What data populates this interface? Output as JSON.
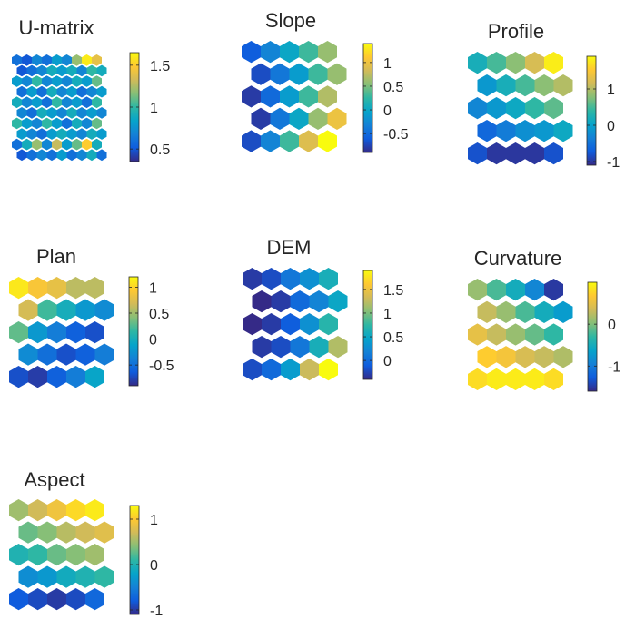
{
  "colormap": [
    "#352a87",
    "#0f5cdd",
    "#1481d6",
    "#06a4ca",
    "#2eb7a4",
    "#87bf77",
    "#d1bb59",
    "#fec832",
    "#f9fb0e"
  ],
  "chart_data": [
    {
      "type": "heatmap",
      "title": "U-matrix",
      "grid": "hexagonal",
      "rows": 10,
      "cols": 9,
      "clim": [
        0.35,
        1.65
      ],
      "colorbar_ticks": [
        {
          "value": 0.5,
          "label": "0.5"
        },
        {
          "value": 1,
          "label": "1"
        },
        {
          "value": 1.5,
          "label": "1.5"
        }
      ],
      "values": [
        [
          0.6,
          0.5,
          0.7,
          0.6,
          0.8,
          0.7,
          1.2,
          1.6,
          1.4
        ],
        [
          0.5,
          0.6,
          0.7,
          0.9,
          0.8,
          0.9,
          0.7,
          1.0,
          0.9
        ],
        [
          0.8,
          0.7,
          1.0,
          0.7,
          0.8,
          0.7,
          0.9,
          0.8,
          1.1
        ],
        [
          0.6,
          0.8,
          0.6,
          0.9,
          0.7,
          0.8,
          0.6,
          0.7,
          0.8
        ],
        [
          0.9,
          0.7,
          0.8,
          0.6,
          1.0,
          0.7,
          0.8,
          0.6,
          1.0
        ],
        [
          0.7,
          0.6,
          0.9,
          0.8,
          0.7,
          0.9,
          0.7,
          0.8,
          0.7
        ],
        [
          1.0,
          0.8,
          0.7,
          1.0,
          0.8,
          0.6,
          0.9,
          0.7,
          1.1
        ],
        [
          0.8,
          0.7,
          0.6,
          0.8,
          0.9,
          0.8,
          0.7,
          0.9,
          0.8
        ],
        [
          0.6,
          0.9,
          1.2,
          0.7,
          1.3,
          0.8,
          1.1,
          1.5,
          0.9
        ],
        [
          0.5,
          0.6,
          0.7,
          0.6,
          0.8,
          0.6,
          0.7,
          0.9,
          0.6
        ]
      ]
    },
    {
      "type": "heatmap",
      "title": "Slope",
      "grid": "hexagonal",
      "rows": 5,
      "cols": 5,
      "clim": [
        -0.9,
        1.4
      ],
      "colorbar_ticks": [
        {
          "value": -0.5,
          "label": "-0.5"
        },
        {
          "value": 0,
          "label": "0"
        },
        {
          "value": 0.5,
          "label": "0.5"
        },
        {
          "value": 1,
          "label": "1"
        }
      ],
      "values": [
        [
          -0.6,
          -0.3,
          0.0,
          0.3,
          0.6
        ],
        [
          -0.7,
          -0.4,
          -0.1,
          0.3,
          0.6
        ],
        [
          -0.8,
          -0.5,
          -0.1,
          0.3,
          0.7
        ],
        [
          -0.8,
          -0.4,
          0.0,
          0.6,
          1.0
        ],
        [
          -0.7,
          -0.3,
          0.3,
          0.9,
          1.4
        ]
      ]
    },
    {
      "type": "heatmap",
      "title": "Profile",
      "grid": "hexagonal",
      "rows": 5,
      "cols": 5,
      "clim": [
        -1.1,
        1.9
      ],
      "colorbar_ticks": [
        {
          "value": -1,
          "label": "-1"
        },
        {
          "value": 0,
          "label": "0"
        },
        {
          "value": 1,
          "label": "1"
        }
      ],
      "values": [
        [
          0.2,
          0.5,
          0.8,
          1.2,
          1.8
        ],
        [
          -0.1,
          0.2,
          0.5,
          0.8,
          1.0
        ],
        [
          -0.3,
          -0.1,
          0.1,
          0.4,
          0.6
        ],
        [
          -0.6,
          -0.4,
          -0.2,
          -0.1,
          0.1
        ],
        [
          -0.8,
          -1.0,
          -1.0,
          -1.0,
          -0.8
        ]
      ]
    },
    {
      "type": "heatmap",
      "title": "Plan",
      "grid": "hexagonal",
      "rows": 5,
      "cols": 5,
      "clim": [
        -0.9,
        1.2
      ],
      "colorbar_ticks": [
        {
          "value": -0.5,
          "label": "-0.5"
        },
        {
          "value": 0,
          "label": "0"
        },
        {
          "value": 0.5,
          "label": "0.5"
        },
        {
          "value": 1,
          "label": "1"
        }
      ],
      "values": [
        [
          1.1,
          0.9,
          0.8,
          0.6,
          0.6
        ],
        [
          0.7,
          0.2,
          0.0,
          -0.2,
          -0.3
        ],
        [
          0.3,
          -0.2,
          -0.4,
          -0.6,
          -0.7
        ],
        [
          -0.3,
          -0.5,
          -0.7,
          -0.6,
          -0.4
        ],
        [
          -0.7,
          -0.8,
          -0.6,
          -0.4,
          -0.1
        ]
      ]
    },
    {
      "type": "heatmap",
      "title": "DEM",
      "grid": "hexagonal",
      "rows": 5,
      "cols": 5,
      "clim": [
        -0.4,
        1.9
      ],
      "colorbar_ticks": [
        {
          "value": 0,
          "label": "0"
        },
        {
          "value": 0.5,
          "label": "0.5"
        },
        {
          "value": 1,
          "label": "1"
        },
        {
          "value": 1.5,
          "label": "1.5"
        }
      ],
      "values": [
        [
          -0.3,
          -0.2,
          0.1,
          0.3,
          0.6
        ],
        [
          -0.4,
          -0.3,
          0.0,
          0.2,
          0.5
        ],
        [
          -0.4,
          -0.3,
          -0.1,
          0.3,
          0.7
        ],
        [
          -0.3,
          -0.2,
          0.1,
          0.6,
          1.2
        ],
        [
          -0.2,
          0.0,
          0.4,
          1.3,
          1.9
        ]
      ]
    },
    {
      "type": "heatmap",
      "title": "Curvature",
      "grid": "hexagonal",
      "rows": 5,
      "cols": 5,
      "clim": [
        -1.6,
        1.0
      ],
      "colorbar_ticks": [
        {
          "value": -1,
          "label": "-1"
        },
        {
          "value": 0,
          "label": "0"
        }
      ],
      "values": [
        [
          0.1,
          -0.2,
          -0.5,
          -0.9,
          -1.5
        ],
        [
          0.3,
          0.1,
          -0.2,
          -0.5,
          -0.7
        ],
        [
          0.5,
          0.3,
          0.1,
          -0.1,
          -0.3
        ],
        [
          0.7,
          0.6,
          0.4,
          0.3,
          0.2
        ],
        [
          0.8,
          0.9,
          0.9,
          0.9,
          0.8
        ]
      ]
    },
    {
      "type": "heatmap",
      "title": "Aspect",
      "grid": "hexagonal",
      "rows": 5,
      "cols": 5,
      "clim": [
        -1.1,
        1.3
      ],
      "colorbar_ticks": [
        {
          "value": -1,
          "label": "-1"
        },
        {
          "value": 0,
          "label": "0"
        },
        {
          "value": 1,
          "label": "1"
        }
      ],
      "values": [
        [
          0.5,
          0.7,
          0.9,
          1.1,
          1.2
        ],
        [
          0.3,
          0.4,
          0.6,
          0.7,
          0.8
        ],
        [
          0.0,
          0.1,
          0.3,
          0.4,
          0.5
        ],
        [
          -0.4,
          -0.3,
          -0.1,
          0.0,
          0.1
        ],
        [
          -0.8,
          -0.9,
          -1.0,
          -0.9,
          -0.7
        ]
      ]
    }
  ]
}
